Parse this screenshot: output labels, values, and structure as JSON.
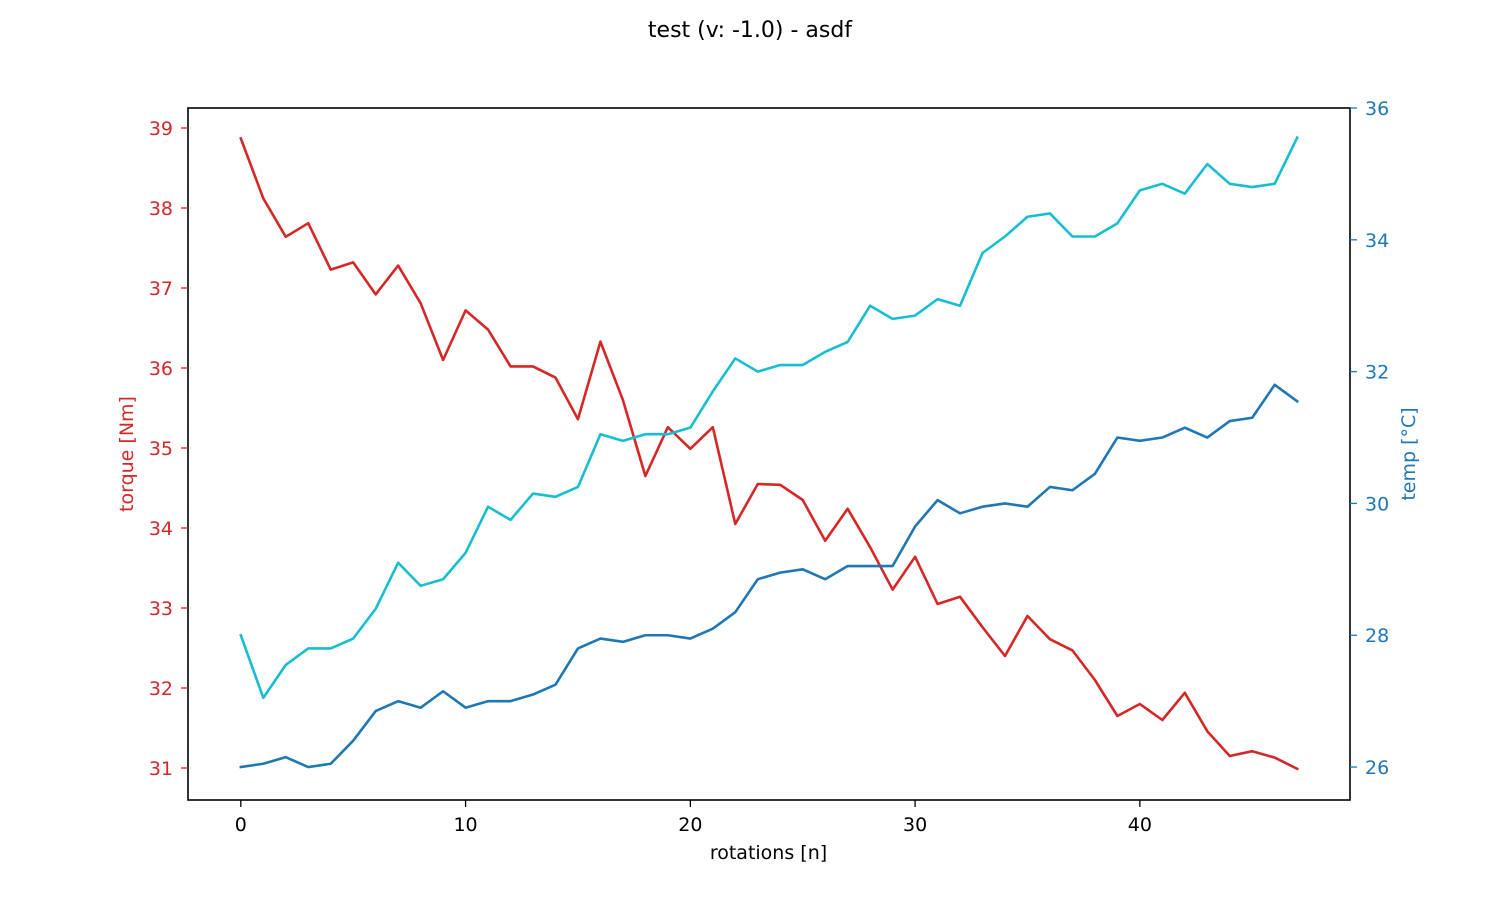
{
  "chart_data": {
    "type": "line",
    "title": "test (v: -1.0) - asdf",
    "xlabel": "rotations [n]",
    "ylabel_left": "torque [Nm]",
    "ylabel_right": "temp [°C]",
    "xlim": [
      -2.35,
      49.35
    ],
    "ylim_left": [
      30.6,
      39.25
    ],
    "ylim_right": [
      25.5,
      36.0
    ],
    "xticks": [
      0,
      10,
      20,
      30,
      40
    ],
    "yticks_left": [
      31,
      32,
      33,
      34,
      35,
      36,
      37,
      38,
      39
    ],
    "yticks_right": [
      26,
      28,
      30,
      32,
      34,
      36
    ],
    "grid": false,
    "legend": "none",
    "colors": {
      "left_axis": "#d62728",
      "right_axis": "#1f77b4"
    },
    "x": [
      0,
      1,
      2,
      3,
      4,
      5,
      6,
      7,
      8,
      9,
      10,
      11,
      12,
      13,
      14,
      15,
      16,
      17,
      18,
      19,
      20,
      21,
      22,
      23,
      24,
      25,
      26,
      27,
      28,
      29,
      30,
      31,
      32,
      33,
      34,
      35,
      36,
      37,
      38,
      39,
      40,
      41,
      42,
      43,
      44,
      45,
      46,
      47
    ],
    "series": [
      {
        "axis": "left",
        "color": "#d62728",
        "values": [
          38.87,
          38.12,
          37.64,
          37.81,
          37.23,
          37.32,
          36.92,
          37.28,
          36.81,
          36.1,
          36.72,
          36.48,
          36.02,
          36.02,
          35.88,
          35.36,
          36.33,
          35.6,
          34.65,
          35.26,
          34.99,
          35.26,
          34.05,
          34.55,
          34.54,
          34.35,
          33.84,
          34.24,
          33.76,
          33.23,
          33.64,
          33.05,
          33.14,
          32.76,
          32.4,
          32.9,
          32.61,
          32.47,
          32.1,
          31.65,
          31.8,
          31.6,
          31.94,
          31.46,
          31.15,
          31.21,
          31.13,
          30.99
        ]
      },
      {
        "axis": "right",
        "color": "#1f77b4",
        "values": [
          26.0,
          26.05,
          26.15,
          26.0,
          26.05,
          26.4,
          26.85,
          27.0,
          26.9,
          27.15,
          26.9,
          27.0,
          27.0,
          27.1,
          27.25,
          27.8,
          27.95,
          27.9,
          28.0,
          28.0,
          27.95,
          28.1,
          28.35,
          28.85,
          28.95,
          29.0,
          28.85,
          29.05,
          29.05,
          29.05,
          29.65,
          30.05,
          29.85,
          29.95,
          30.0,
          29.95,
          30.25,
          30.2,
          30.45,
          31.0,
          30.95,
          31.0,
          31.15,
          31.0,
          31.25,
          31.3,
          31.8,
          31.55
        ]
      },
      {
        "axis": "right",
        "color": "#17becf",
        "values": [
          28.0,
          27.05,
          27.55,
          27.8,
          27.8,
          27.95,
          28.4,
          29.1,
          28.75,
          28.85,
          29.25,
          29.95,
          29.75,
          30.15,
          30.1,
          30.25,
          31.05,
          30.95,
          31.05,
          31.05,
          31.15,
          31.7,
          32.2,
          32.0,
          32.1,
          32.1,
          32.3,
          32.45,
          33.0,
          32.8,
          32.85,
          33.1,
          33.0,
          33.8,
          34.05,
          34.35,
          34.4,
          34.05,
          34.05,
          34.25,
          34.75,
          34.85,
          34.7,
          35.15,
          34.85,
          34.8,
          34.85,
          35.55
        ]
      }
    ]
  }
}
